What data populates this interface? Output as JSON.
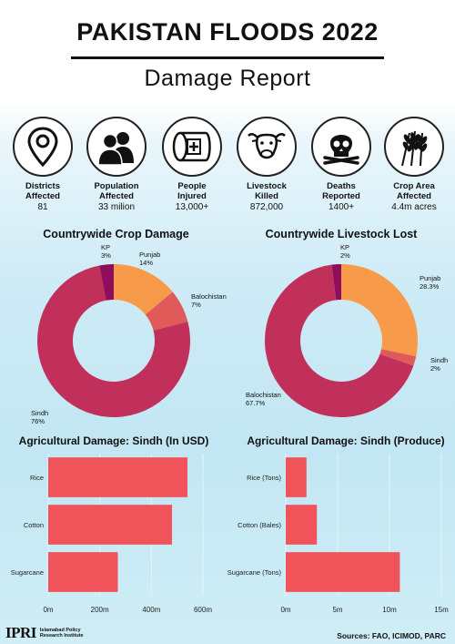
{
  "header": {
    "title": "PAKISTAN FLOODS 2022",
    "subtitle": "Damage Report"
  },
  "stats": [
    {
      "label_1": "Districts",
      "label_2": "Affected",
      "value": "81",
      "icon": "map-pin-icon"
    },
    {
      "label_1": "Population",
      "label_2": "Affected",
      "value": "33 milion",
      "icon": "people-icon"
    },
    {
      "label_1": "People",
      "label_2": "Injured",
      "value": "13,000+",
      "icon": "bandage-icon"
    },
    {
      "label_1": "Livestock",
      "label_2": "Killed",
      "value": "872,000",
      "icon": "cow-icon"
    },
    {
      "label_1": "Deaths",
      "label_2": "Reported",
      "value": "1400+",
      "icon": "skull-icon"
    },
    {
      "label_1": "Crop Area",
      "label_2": "Affected",
      "value": "4.4m acres",
      "icon": "wheat-icon"
    }
  ],
  "colors": {
    "crimson": "#c0305b",
    "orange": "#f79a4a",
    "coral": "#e05a5a",
    "purple": "#8e0d5c",
    "bar": "#f0545a"
  },
  "chart_data": [
    {
      "type": "pie",
      "title": "Countrywide Crop Damage",
      "slices": [
        {
          "label": "Punjab",
          "value": 14,
          "value_label": "14%"
        },
        {
          "label": "Balochistan",
          "value": 7,
          "value_label": "7%"
        },
        {
          "label": "Sindh",
          "value": 76,
          "value_label": "76%"
        },
        {
          "label": "KP",
          "value": 3,
          "value_label": "3%"
        }
      ]
    },
    {
      "type": "pie",
      "title": "Countrywide Livestock Lost",
      "slices": [
        {
          "label": "Punjab",
          "value": 28.3,
          "value_label": "28.3%"
        },
        {
          "label": "Sindh",
          "value": 2,
          "value_label": "2%"
        },
        {
          "label": "Balochistan",
          "value": 67.7,
          "value_label": "67.7%"
        },
        {
          "label": "KP",
          "value": 2,
          "value_label": "2%"
        }
      ]
    },
    {
      "type": "bar",
      "orientation": "horizontal",
      "title": "Agricultural Damage: Sindh (In USD)",
      "categories": [
        "Rice",
        "Cotton",
        "Sugarcane"
      ],
      "values": [
        540,
        480,
        270
      ],
      "xlim": [
        0,
        600
      ],
      "xticks": [
        0,
        200,
        400,
        600
      ],
      "xtick_labels": [
        "0m",
        "200m",
        "400m",
        "600m"
      ],
      "grid": true
    },
    {
      "type": "bar",
      "orientation": "horizontal",
      "title": "Agricultural Damage: Sindh (Produce)",
      "categories": [
        "Rice (Tons)",
        "Cotton (Bales)",
        "Sugarcane (Tons)"
      ],
      "values": [
        2,
        3,
        11
      ],
      "xlim": [
        0,
        15
      ],
      "xticks": [
        0,
        5,
        10,
        15
      ],
      "xtick_labels": [
        "0m",
        "5m",
        "10m",
        "15m"
      ],
      "grid": true
    }
  ],
  "footer": {
    "logo_text": "IPRI",
    "org_line_1": "Islamabad Policy",
    "org_line_2": "Research Institute",
    "sources": "Sources: FAO, ICIMOD, PARC"
  }
}
